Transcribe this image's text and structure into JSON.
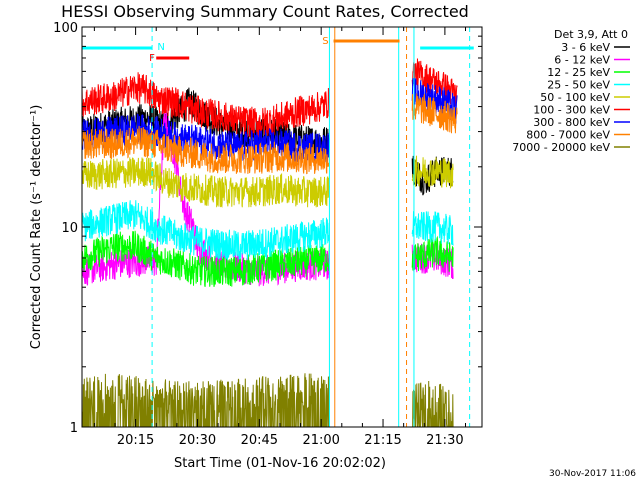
{
  "chart_data": {
    "type": "line",
    "title": "HESSI Observing Summary Count Rates, Corrected",
    "xlabel": "Start Time (01-Nov-16 20:02:02)",
    "ylabel": "Corrected Count Rate (s⁻¹ detector⁻¹)",
    "y_scale": "log",
    "ylim": [
      1,
      100
    ],
    "y_ticks": [
      {
        "value": 1,
        "label": "1"
      },
      {
        "value": 10,
        "label": "10"
      },
      {
        "value": 100,
        "label": "100"
      }
    ],
    "x_start": "20:02:02",
    "xlim": [
      "20:02",
      "21:39"
    ],
    "x_ticks": [
      "20:15",
      "20:30",
      "20:45",
      "21:00",
      "21:15",
      "21:30"
    ],
    "x_ticks_minutes": [
      15,
      30,
      45,
      60,
      75,
      90
    ],
    "xlim_minutes": [
      2,
      99
    ],
    "legend_title": "Det 3,9, Att 0",
    "legend_position": "right",
    "data_gaps_minutes": [
      [
        62,
        82
      ]
    ],
    "series": [
      {
        "name": "3 - 6 keV",
        "color": "#000000",
        "points": [
          [
            2,
            30
          ],
          [
            10,
            33
          ],
          [
            18,
            35
          ],
          [
            22,
            32
          ],
          [
            26,
            38
          ],
          [
            28,
            42
          ],
          [
            32,
            36
          ],
          [
            36,
            32
          ],
          [
            40,
            30
          ],
          [
            46,
            30
          ],
          [
            52,
            28
          ],
          [
            57,
            27
          ],
          [
            62,
            27
          ],
          [
            82,
            20
          ],
          [
            85,
            17
          ],
          [
            88,
            19
          ],
          [
            92,
            19
          ]
        ]
      },
      {
        "name": "6 - 12 keV",
        "color": "#ff00ff",
        "points": [
          [
            2,
            6
          ],
          [
            10,
            6.5
          ],
          [
            17,
            6.8
          ],
          [
            20,
            6.7
          ],
          [
            22,
            35
          ],
          [
            23,
            30
          ],
          [
            25,
            20
          ],
          [
            26,
            15
          ],
          [
            27,
            12
          ],
          [
            28,
            11
          ],
          [
            29,
            10
          ],
          [
            30,
            8
          ],
          [
            35,
            6.5
          ],
          [
            45,
            6
          ],
          [
            55,
            6.4
          ],
          [
            62,
            6.5
          ],
          [
            82,
            7
          ],
          [
            88,
            7
          ],
          [
            92,
            6.5
          ]
        ]
      },
      {
        "name": "12 - 25 keV",
        "color": "#00ff00",
        "points": [
          [
            2,
            7
          ],
          [
            10,
            8
          ],
          [
            15,
            8
          ],
          [
            20,
            7
          ],
          [
            25,
            6.5
          ],
          [
            30,
            6
          ],
          [
            40,
            6
          ],
          [
            50,
            6.5
          ],
          [
            62,
            7
          ],
          [
            82,
            7
          ],
          [
            88,
            7.5
          ],
          [
            92,
            7
          ]
        ]
      },
      {
        "name": "25 - 50 keV",
        "color": "#00ffff",
        "points": [
          [
            2,
            10
          ],
          [
            10,
            11
          ],
          [
            15,
            11.5
          ],
          [
            20,
            10
          ],
          [
            25,
            9
          ],
          [
            30,
            8.5
          ],
          [
            40,
            8
          ],
          [
            50,
            8.5
          ],
          [
            62,
            9.5
          ],
          [
            82,
            10
          ],
          [
            88,
            10
          ],
          [
            92,
            9.5
          ]
        ]
      },
      {
        "name": "50 - 100 keV",
        "color": "#cccc00",
        "points": [
          [
            2,
            18
          ],
          [
            10,
            18.5
          ],
          [
            18,
            19
          ],
          [
            22,
            17
          ],
          [
            26,
            16
          ],
          [
            30,
            15.5
          ],
          [
            35,
            15
          ],
          [
            40,
            15
          ],
          [
            45,
            15
          ],
          [
            50,
            15.5
          ],
          [
            55,
            15
          ],
          [
            62,
            15
          ],
          [
            82,
            19
          ],
          [
            88,
            19
          ],
          [
            92,
            18.5
          ]
        ]
      },
      {
        "name": "100 - 300 keV",
        "color": "#ff0000",
        "points": [
          [
            2,
            42
          ],
          [
            10,
            45
          ],
          [
            15,
            50
          ],
          [
            18,
            48
          ],
          [
            20,
            44
          ],
          [
            25,
            42
          ],
          [
            30,
            38
          ],
          [
            35,
            36
          ],
          [
            40,
            34
          ],
          [
            45,
            33
          ],
          [
            50,
            35
          ],
          [
            55,
            38
          ],
          [
            60,
            40
          ],
          [
            62,
            42
          ],
          [
            82,
            60
          ],
          [
            86,
            55
          ],
          [
            90,
            50
          ],
          [
            93,
            45
          ]
        ]
      },
      {
        "name": "300 - 800 keV",
        "color": "#0000ff",
        "points": [
          [
            2,
            29
          ],
          [
            10,
            30
          ],
          [
            15,
            31
          ],
          [
            20,
            30
          ],
          [
            25,
            28
          ],
          [
            30,
            27
          ],
          [
            35,
            26
          ],
          [
            40,
            25
          ],
          [
            45,
            26
          ],
          [
            50,
            26
          ],
          [
            55,
            25
          ],
          [
            62,
            25
          ],
          [
            82,
            47
          ],
          [
            86,
            45
          ],
          [
            90,
            42
          ],
          [
            93,
            38
          ]
        ]
      },
      {
        "name": "800 - 7000 keV",
        "color": "#ff8000",
        "points": [
          [
            2,
            26
          ],
          [
            10,
            26
          ],
          [
            15,
            27
          ],
          [
            20,
            26
          ],
          [
            25,
            24
          ],
          [
            30,
            23
          ],
          [
            35,
            22
          ],
          [
            40,
            22
          ],
          [
            45,
            22
          ],
          [
            50,
            22.5
          ],
          [
            55,
            22
          ],
          [
            62,
            22
          ],
          [
            82,
            40
          ],
          [
            86,
            38
          ],
          [
            90,
            36
          ],
          [
            93,
            34
          ]
        ]
      },
      {
        "name": "7000 - 20000 keV",
        "color": "#808000",
        "points": [
          [
            2,
            1.3
          ],
          [
            10,
            1.4
          ],
          [
            20,
            1.3
          ],
          [
            30,
            1.25
          ],
          [
            40,
            1.3
          ],
          [
            50,
            1.35
          ],
          [
            62,
            1.4
          ],
          [
            82,
            1.2
          ],
          [
            88,
            1.3
          ],
          [
            92,
            1.1
          ]
        ]
      }
    ],
    "flag_bars": [
      {
        "label": "N",
        "color": "#00ffff",
        "segments": [
          [
            2,
            19
          ],
          [
            84,
            97
          ]
        ],
        "label_minute": 21
      },
      {
        "label": "F",
        "color": "#ff0000",
        "segments": [
          [
            20,
            28
          ]
        ],
        "label_minute": 19
      },
      {
        "label": "S",
        "color": "#ff8000",
        "segments": [
          [
            63,
            79
          ]
        ],
        "label_minute": 61
      }
    ],
    "vertical_markers": [
      {
        "minute": 19,
        "color": "#00ffff",
        "style": "dashed"
      },
      {
        "minute": 62,
        "color": "#00ffff",
        "style": "solid"
      },
      {
        "minute": 63.3,
        "color": "#ff8000",
        "style": "solid"
      },
      {
        "minute": 78.8,
        "color": "#00ffff",
        "style": "solid"
      },
      {
        "minute": 80.7,
        "color": "#ff8000",
        "style": "dashed"
      },
      {
        "minute": 82.5,
        "color": "#00ffff",
        "style": "solid"
      },
      {
        "minute": 96,
        "color": "#00ffff",
        "style": "dashed"
      }
    ]
  },
  "footer": {
    "timestamp": "30-Nov-2017 11:06"
  }
}
